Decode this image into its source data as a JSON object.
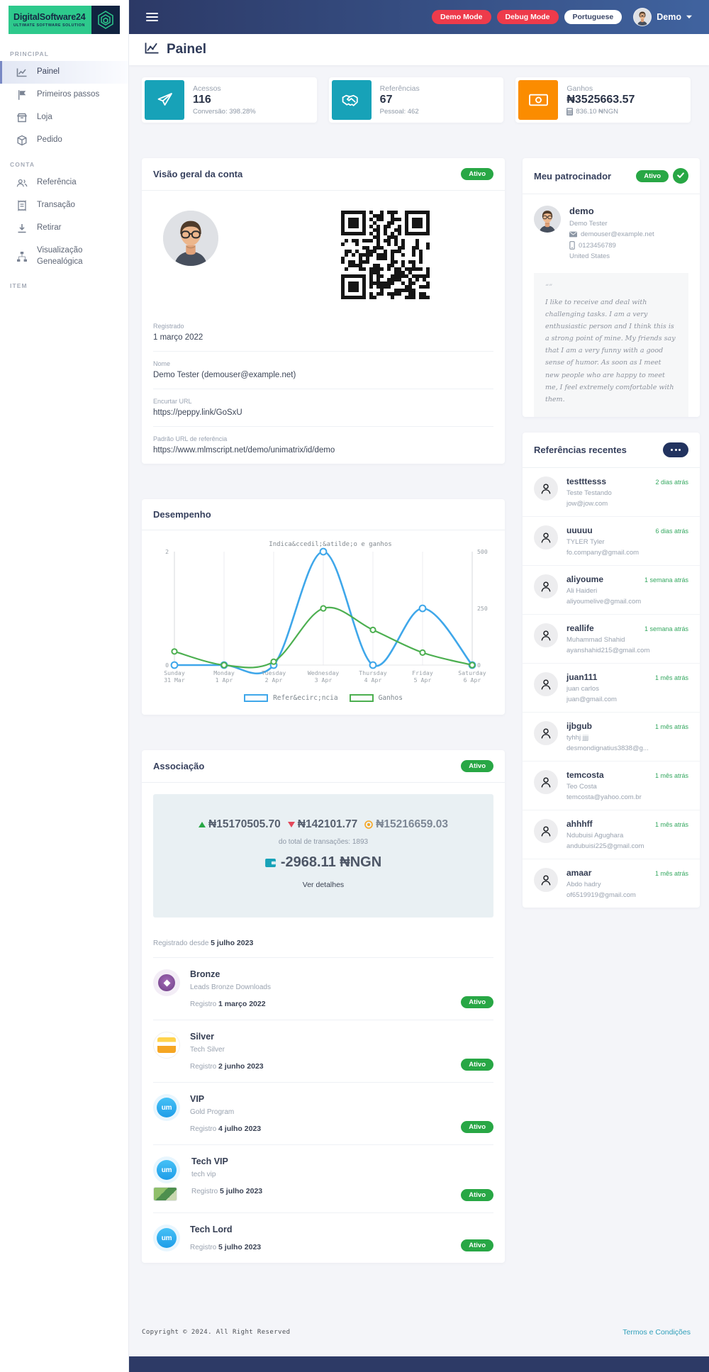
{
  "brand": {
    "name": "DigitalSoftware24",
    "tagline": "ULTIMATE SOFTWARE SOLUTION"
  },
  "navbar": {
    "badges": [
      {
        "label": "Demo Mode",
        "variant": "danger"
      },
      {
        "label": "Debug Mode",
        "variant": "danger"
      },
      {
        "label": "Portuguese",
        "variant": "light"
      }
    ],
    "user": {
      "name": "Demo"
    }
  },
  "page": {
    "title": "Painel"
  },
  "sidebar": {
    "sections": [
      {
        "label": "PRINCIPAL",
        "items": [
          {
            "icon": "chart-line",
            "label": "Painel",
            "active": true
          },
          {
            "icon": "flag",
            "label": "Primeiros passos",
            "active": false
          },
          {
            "icon": "store",
            "label": "Loja",
            "active": false
          },
          {
            "icon": "cube",
            "label": "Pedido",
            "active": false
          }
        ]
      },
      {
        "label": "CONTA",
        "items": [
          {
            "icon": "users",
            "label": "Referência",
            "active": false
          },
          {
            "icon": "receipt",
            "label": "Transação",
            "active": false
          },
          {
            "icon": "download",
            "label": "Retirar",
            "active": false
          },
          {
            "icon": "sitemap",
            "label": "Visualização Genealógica",
            "active": false
          }
        ]
      },
      {
        "label": "ITEM",
        "items": []
      }
    ]
  },
  "stats": [
    {
      "icon": "paper-plane",
      "color": "#17a2b8",
      "label": "Acessos",
      "value": "116",
      "sub": "Conversão: 398.28%",
      "sub_icon": ""
    },
    {
      "icon": "handshake",
      "color": "#17a2b8",
      "label": "Referências",
      "value": "67",
      "sub": "Pessoal: 462",
      "sub_icon": ""
    },
    {
      "icon": "money-bill",
      "color": "#fb8c00",
      "label": "Ganhos",
      "value": "₦3525663.57",
      "sub": "836.10 ₦NGN",
      "sub_icon": "calculator"
    }
  ],
  "overview": {
    "title": "Visão geral da conta",
    "badge": "Ativo",
    "fields": [
      {
        "label": "Registrado",
        "value": "1 março 2022"
      },
      {
        "label": "Nome",
        "value": "Demo Tester (demouser@example.net)"
      },
      {
        "label": "Encurtar URL",
        "value": "https://peppy.link/GoSxU"
      },
      {
        "label": "Padrão URL de referência",
        "value": "https://www.mlmscript.net/demo/unimatrix/id/demo"
      }
    ]
  },
  "sponsor": {
    "title": "Meu patrocinador",
    "badge": "Ativo",
    "username": "demo",
    "fullname": "Demo Tester",
    "email": "demouser@example.net",
    "phone": "0123456789",
    "country": "United States",
    "quote": "I like to receive and deal with challenging tasks. I am a very enthusiastic person and I think this is a strong point of mine. My friends say that I am a very funny with a good sense of humor. As soon as I meet new people who are happy to meet me, I feel extremely comfortable with them."
  },
  "performance": {
    "title": "Desempenho"
  },
  "chart_data": {
    "type": "line",
    "title": "Indica&ccedil;&atilde;o e ganhos",
    "categories": [
      [
        "Sunday",
        "31 Mar"
      ],
      [
        "Monday",
        "1 Apr"
      ],
      [
        "Tuesday",
        "2 Apr"
      ],
      [
        "Wednesday",
        "3 Apr"
      ],
      [
        "Thursday",
        "4 Apr"
      ],
      [
        "Friday",
        "5 Apr"
      ],
      [
        "Saturday",
        "6 Apr"
      ]
    ],
    "series": [
      {
        "name": "Refer&ecirc;ncia",
        "axis": "left",
        "color": "#3fa7ea",
        "values": [
          0,
          0,
          0,
          2,
          0,
          1,
          0
        ]
      },
      {
        "name": "Ganhos",
        "axis": "right",
        "color": "#4caf50",
        "values": [
          60,
          0,
          15,
          250,
          155,
          55,
          0
        ]
      }
    ],
    "left_axis": {
      "min": 0,
      "max": 2,
      "ticks": [
        "0",
        "2"
      ]
    },
    "right_axis": {
      "min": 0,
      "max": 500,
      "ticks": [
        "0",
        "250",
        "500"
      ]
    },
    "grid": true,
    "legend_position": "bottom"
  },
  "referrals": {
    "title": "Referências recentes",
    "items": [
      {
        "username": "testttesss",
        "fullname": "Teste Testando",
        "email": "jow@jow.com",
        "time": "2 dias atrás"
      },
      {
        "username": "uuuuu",
        "fullname": "TYLER Tyler",
        "email": "fo.company@gmail.com",
        "time": "6 dias atrás"
      },
      {
        "username": "aliyoume",
        "fullname": "Ali Haideri",
        "email": "aliyoumelive@gmail.com",
        "time": "1 semana atrás"
      },
      {
        "username": "reallife",
        "fullname": "Muhammad Shahid",
        "email": "ayanshahid215@gmail.com",
        "time": "1 semana atrás"
      },
      {
        "username": "juan111",
        "fullname": "juan carlos",
        "email": "juan@gmail.com",
        "time": "1 mês atrás"
      },
      {
        "username": "ijbgub",
        "fullname": "tyhhj jjjj",
        "email": "desmondignatius3838@g...",
        "time": "1 mês atrás"
      },
      {
        "username": "temcosta",
        "fullname": "Teo Costa",
        "email": "temcosta@yahoo.com.br",
        "time": "1 mês atrás"
      },
      {
        "username": "ahhhff",
        "fullname": "Ndubuisi Agughara",
        "email": "andubuisi225@gmail.com",
        "time": "1 mês atrás"
      },
      {
        "username": "amaar",
        "fullname": "Abdo hadry",
        "email": "of6519919@gmail.com",
        "time": "1 mês atrás"
      }
    ]
  },
  "membership": {
    "title": "Associação",
    "badge": "Ativo",
    "stats": {
      "up_value": "₦15170505.70",
      "down_value": "₦142101.77",
      "net_value": "₦15216659.03",
      "transactions": "do total de transações: 1893",
      "balance": "-2968.11 ₦NGN",
      "details_label": "Ver detalhes"
    },
    "registered_label": "Registrado desde",
    "registered_date": "5 julho 2023",
    "plans": [
      {
        "logo": "bronze-badge",
        "name": "Bronze",
        "subtitle": "Leads Bronze Downloads",
        "register_label": "Registro",
        "date": "1 março 2022",
        "status": "Ativo"
      },
      {
        "logo": "silver-badge",
        "name": "Silver",
        "subtitle": "Tech Silver",
        "register_label": "Registro",
        "date": "2 junho 2023",
        "status": "Ativo"
      },
      {
        "logo": "um-badge",
        "name": "VIP",
        "subtitle": "Gold Program",
        "register_label": "Registro",
        "date": "4 julho 2023",
        "status": "Ativo"
      },
      {
        "logo": "um-badge-stack",
        "name": "Tech VIP",
        "subtitle": "tech vip",
        "register_label": "Registro",
        "date": "5 julho 2023",
        "status": "Ativo"
      },
      {
        "logo": "um-badge",
        "name": "Tech Lord",
        "subtitle": "",
        "register_label": "Registro",
        "date": "5 julho 2023",
        "status": "Ativo"
      }
    ]
  },
  "footer": {
    "copyright": "Copyright © 2024. All Right Reserved",
    "terms_link": "Termos e Condições"
  },
  "colors": {
    "accent_teal": "#17a2b8",
    "accent_orange": "#fb8c00",
    "badge_green": "#28a745",
    "danger_red": "#ee3b4b",
    "navy": "#2d3a66",
    "link_teal": "#2f9fba",
    "chart_blue": "#3fa7ea",
    "chart_green": "#4caf50"
  }
}
